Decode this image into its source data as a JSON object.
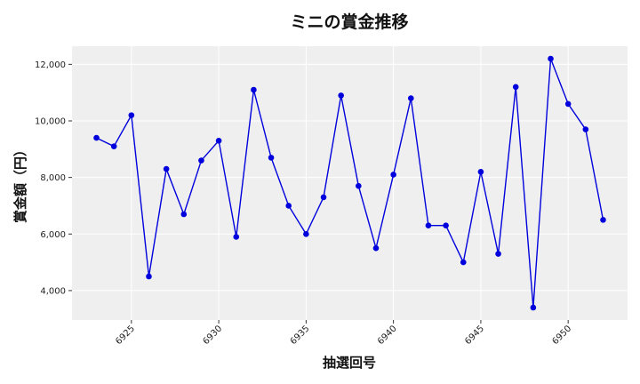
{
  "chart_data": {
    "type": "line",
    "title": "ミニの賞金推移",
    "xlabel": "抽選回号",
    "ylabel": "賞金額（円）",
    "x": [
      6923,
      6924,
      6925,
      6926,
      6927,
      6928,
      6929,
      6930,
      6931,
      6932,
      6933,
      6934,
      6935,
      6936,
      6937,
      6938,
      6939,
      6940,
      6941,
      6942,
      6943,
      6944,
      6945,
      6946,
      6947,
      6948,
      6949,
      6950,
      6951,
      6952
    ],
    "series": [
      {
        "values": [
          9400,
          9100,
          10200,
          4500,
          8300,
          6700,
          8600,
          9300,
          5900,
          11100,
          8700,
          7000,
          6000,
          7300,
          10900,
          7700,
          5500,
          8100,
          10800,
          6300,
          6300,
          5000,
          8200,
          5300,
          11200,
          3400,
          12200,
          10600,
          9700,
          6500
        ],
        "color": "#0000dd"
      }
    ],
    "xticks": [
      "6925",
      "6930",
      "6935",
      "6940",
      "6945",
      "6950"
    ],
    "yticks": [
      "4,000",
      "6,000",
      "8,000",
      "10,000",
      "12,000"
    ],
    "xlim": [
      6921.6,
      6953.4
    ],
    "ylim": [
      2960,
      12640
    ],
    "grid": true,
    "background": "#efefef",
    "line_color": "#0000dd"
  }
}
